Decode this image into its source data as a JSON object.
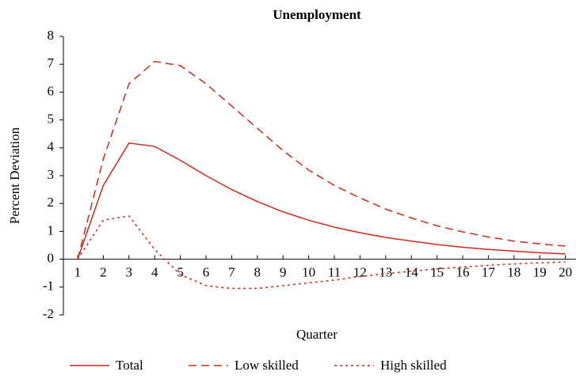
{
  "chart_data": {
    "type": "line",
    "title": "Unemployment",
    "x_label": "Quarter",
    "y_label": "Percent Deviation",
    "categories": [
      "1",
      "2",
      "3",
      "4",
      "5",
      "6",
      "7",
      "8",
      "9",
      "10",
      "11",
      "12",
      "13",
      "14",
      "15",
      "16",
      "17",
      "18",
      "19",
      "20"
    ],
    "ylim": [
      -2,
      8
    ],
    "yticks": [
      -2,
      -1,
      0,
      1,
      2,
      3,
      4,
      5,
      6,
      7,
      8
    ],
    "series": [
      {
        "name": "Total",
        "color": "#cc2a1f",
        "style": "solid",
        "values": [
          0,
          2.65,
          4.17,
          4.05,
          3.55,
          3.0,
          2.5,
          2.07,
          1.7,
          1.4,
          1.15,
          0.95,
          0.78,
          0.65,
          0.53,
          0.43,
          0.35,
          0.29,
          0.23,
          0.19
        ]
      },
      {
        "name": "Low skilled",
        "color": "#cc2a1f",
        "style": "dashed",
        "values": [
          0,
          3.6,
          6.3,
          7.1,
          6.95,
          6.3,
          5.5,
          4.7,
          3.9,
          3.2,
          2.65,
          2.2,
          1.8,
          1.48,
          1.2,
          0.98,
          0.8,
          0.65,
          0.55,
          0.47
        ]
      },
      {
        "name": "High skilled",
        "color": "#cc2a1f",
        "style": "dotted",
        "values": [
          0,
          1.4,
          1.55,
          0.35,
          -0.55,
          -0.95,
          -1.05,
          -1.05,
          -0.95,
          -0.85,
          -0.75,
          -0.62,
          -0.52,
          -0.43,
          -0.35,
          -0.28,
          -0.22,
          -0.17,
          -0.13,
          -0.1
        ]
      }
    ]
  }
}
